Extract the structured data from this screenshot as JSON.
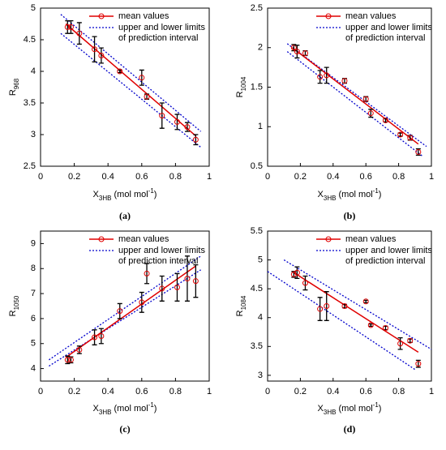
{
  "chart_data": [
    {
      "type": "scatter",
      "panel_label": "(a)",
      "y_label": [
        {
          "text": "R"
        },
        {
          "text": "968",
          "sub": true
        }
      ],
      "x_label": [
        {
          "text": "X"
        },
        {
          "text": "3HB",
          "sub": true
        },
        {
          "text": " (mol mol"
        },
        {
          "text": "-1",
          "sup": true
        },
        {
          "text": ")"
        }
      ],
      "legend": {
        "mean": "mean values",
        "interval": [
          "upper and lower limits",
          "of prediction interval"
        ]
      },
      "x": [
        0.16,
        0.18,
        0.23,
        0.32,
        0.36,
        0.47,
        0.6,
        0.63,
        0.72,
        0.81,
        0.87,
        0.92
      ],
      "values": [
        4.7,
        4.7,
        4.6,
        4.35,
        4.25,
        4.0,
        3.9,
        3.6,
        3.3,
        3.2,
        3.12,
        2.92
      ],
      "errors": [
        0.1,
        0.1,
        0.17,
        0.2,
        0.12,
        0.02,
        0.12,
        0.04,
        0.2,
        0.12,
        0.07,
        0.08
      ],
      "fit": {
        "x": [
          0.15,
          0.92
        ],
        "y": [
          4.75,
          2.98
        ]
      },
      "upper": {
        "x": [
          0.12,
          0.95
        ],
        "y": [
          4.9,
          3.05
        ]
      },
      "lower": {
        "x": [
          0.12,
          0.95
        ],
        "y": [
          4.6,
          2.8
        ]
      },
      "color": "#e00000",
      "interval_color": "#0000cc",
      "xlim": [
        0,
        1
      ],
      "xticks": [
        0,
        0.2,
        0.4,
        0.6,
        0.8,
        1
      ],
      "ylim": [
        2.5,
        5
      ],
      "yticks": [
        2.5,
        3,
        3.5,
        4,
        4.5,
        5
      ]
    },
    {
      "type": "scatter",
      "panel_label": "(b)",
      "y_label": [
        {
          "text": "R"
        },
        {
          "text": "1004",
          "sub": true
        }
      ],
      "x_label": [
        {
          "text": "X"
        },
        {
          "text": "3HB",
          "sub": true
        },
        {
          "text": " (mol mol"
        },
        {
          "text": "-1",
          "sup": true
        },
        {
          "text": ")"
        }
      ],
      "legend": {
        "mean": "mean values",
        "interval": [
          "upper and lower limits",
          "of prediction interval"
        ]
      },
      "x": [
        0.16,
        0.18,
        0.23,
        0.32,
        0.36,
        0.47,
        0.6,
        0.63,
        0.72,
        0.81,
        0.87,
        0.92
      ],
      "values": [
        2.0,
        1.95,
        1.93,
        1.63,
        1.65,
        1.58,
        1.35,
        1.17,
        1.08,
        0.9,
        0.86,
        0.68
      ],
      "errors": [
        0.04,
        0.08,
        0.03,
        0.08,
        0.1,
        0.03,
        0.03,
        0.05,
        0.02,
        0.02,
        0.03,
        0.04
      ],
      "fit": {
        "x": [
          0.15,
          0.92
        ],
        "y": [
          2.0,
          0.78
        ]
      },
      "upper": {
        "x": [
          0.12,
          0.97
        ],
        "y": [
          2.05,
          0.75
        ]
      },
      "lower": {
        "x": [
          0.12,
          0.95
        ],
        "y": [
          1.95,
          0.62
        ]
      },
      "color": "#e00000",
      "interval_color": "#0000cc",
      "xlim": [
        0,
        1
      ],
      "xticks": [
        0,
        0.2,
        0.4,
        0.6,
        0.8,
        1
      ],
      "ylim": [
        0.5,
        2.5
      ],
      "yticks": [
        0.5,
        1,
        1.5,
        2,
        2.5
      ]
    },
    {
      "type": "scatter",
      "panel_label": "(c)",
      "y_label": [
        {
          "text": "R"
        },
        {
          "text": "1050",
          "sub": true
        }
      ],
      "x_label": [
        {
          "text": "X"
        },
        {
          "text": "3HB",
          "sub": true
        },
        {
          "text": " (mol mol"
        },
        {
          "text": "-1",
          "sup": true
        },
        {
          "text": ")"
        }
      ],
      "legend": {
        "mean": "mean values",
        "interval": [
          "upper and lower limits",
          "of prediction interval"
        ]
      },
      "x": [
        0.16,
        0.18,
        0.23,
        0.32,
        0.36,
        0.47,
        0.6,
        0.63,
        0.72,
        0.81,
        0.87,
        0.92
      ],
      "values": [
        4.35,
        4.35,
        4.75,
        5.25,
        5.3,
        6.3,
        6.65,
        7.8,
        7.2,
        7.25,
        7.6,
        7.5
      ],
      "errors": [
        0.15,
        0.12,
        0.15,
        0.3,
        0.3,
        0.3,
        0.4,
        0.4,
        0.5,
        0.55,
        0.9,
        0.65
      ],
      "fit": {
        "x": [
          0.15,
          0.92
        ],
        "y": [
          4.45,
          8.1
        ]
      },
      "upper": {
        "x": [
          0.05,
          0.95
        ],
        "y": [
          4.35,
          8.5
        ]
      },
      "lower": {
        "x": [
          0.05,
          0.95
        ],
        "y": [
          4.1,
          7.95
        ]
      },
      "color": "#e00000",
      "interval_color": "#0000cc",
      "xlim": [
        0,
        1
      ],
      "xticks": [
        0,
        0.2,
        0.4,
        0.6,
        0.8,
        1
      ],
      "ylim": [
        3.5,
        9.5
      ],
      "yticks": [
        4,
        5,
        6,
        7,
        8,
        9
      ]
    },
    {
      "type": "scatter",
      "panel_label": "(d)",
      "y_label": [
        {
          "text": "R"
        },
        {
          "text": "1084",
          "sub": true
        }
      ],
      "x_label": [
        {
          "text": "X"
        },
        {
          "text": "3HB",
          "sub": true
        },
        {
          "text": " (mol mol"
        },
        {
          "text": "-1",
          "sup": true
        },
        {
          "text": ")"
        }
      ],
      "legend": {
        "mean": "mean values",
        "interval": [
          "upper and lower limits",
          "of prediction interval"
        ]
      },
      "x": [
        0.16,
        0.18,
        0.23,
        0.32,
        0.36,
        0.47,
        0.6,
        0.63,
        0.72,
        0.81,
        0.87,
        0.92
      ],
      "values": [
        4.75,
        4.78,
        4.6,
        4.15,
        4.2,
        4.2,
        4.28,
        3.87,
        3.82,
        3.55,
        3.6,
        3.2
      ],
      "errors": [
        0.05,
        0.1,
        0.12,
        0.2,
        0.25,
        0.03,
        0.02,
        0.02,
        0.03,
        0.1,
        0.03,
        0.06
      ],
      "fit": {
        "x": [
          0.15,
          0.92
        ],
        "y": [
          4.8,
          3.4
        ]
      },
      "upper": {
        "x": [
          0.1,
          1
        ],
        "y": [
          5.0,
          3.45
        ]
      },
      "lower": {
        "x": [
          0,
          0.9
        ],
        "y": [
          4.8,
          3.1
        ]
      },
      "color": "#e00000",
      "interval_color": "#0000cc",
      "xlim": [
        0,
        1
      ],
      "xticks": [
        0,
        0.2,
        0.4,
        0.6,
        0.8,
        1
      ],
      "ylim": [
        2.9,
        5.5
      ],
      "yticks": [
        3,
        3.5,
        4,
        4.5,
        5,
        5.5
      ]
    }
  ]
}
